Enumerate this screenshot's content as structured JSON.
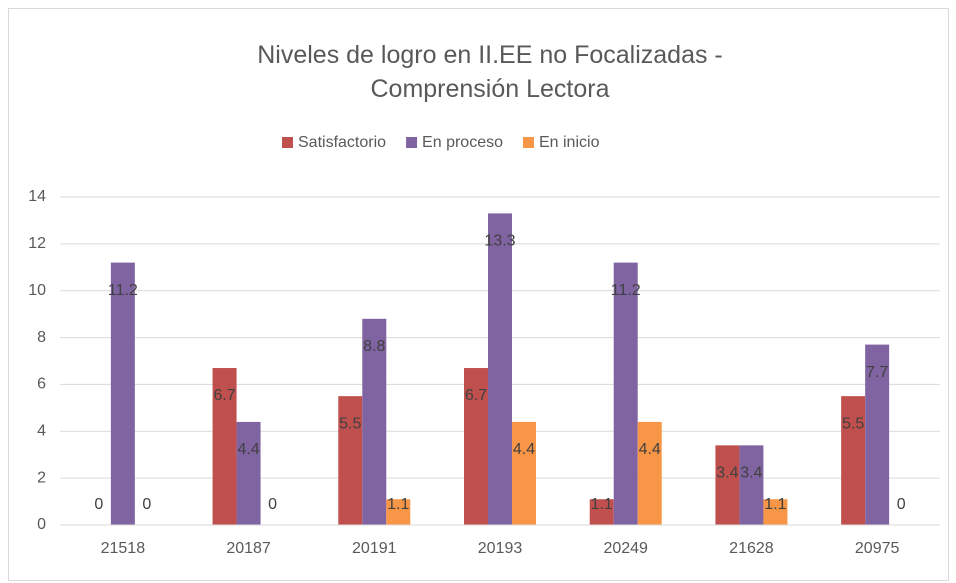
{
  "chart_data": {
    "type": "bar",
    "title": "Niveles de logro en II.EE no Focalizadas - Comprensión Lectora",
    "categories": [
      "21518",
      "20187",
      "20191",
      "20193",
      "20249",
      "21628",
      "20975"
    ],
    "series": [
      {
        "name": "Satisfactorio",
        "color": "#c0504d",
        "values": [
          0,
          6.7,
          5.5,
          6.7,
          1.1,
          3.4,
          5.5
        ]
      },
      {
        "name": "En proceso",
        "color": "#8064a2",
        "values": [
          11.2,
          4.4,
          8.8,
          13.3,
          11.2,
          3.4,
          7.7
        ]
      },
      {
        "name": "En inicio",
        "color": "#f79646",
        "values": [
          0,
          0,
          1.1,
          4.4,
          4.4,
          1.1,
          0
        ]
      }
    ],
    "ylim": [
      0,
      14
    ],
    "yticks": [
      0,
      2,
      4,
      6,
      8,
      10,
      12,
      14
    ],
    "grid": true,
    "legend": "top"
  }
}
